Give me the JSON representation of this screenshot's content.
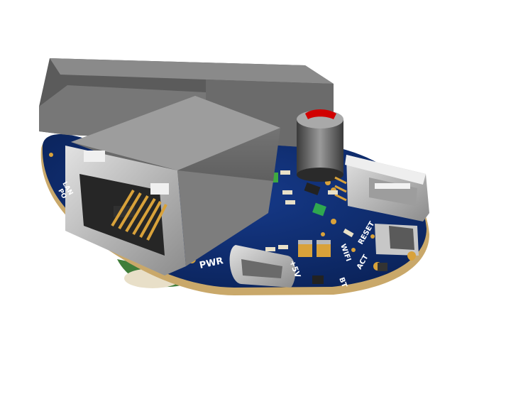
{
  "silkscreen": {
    "pwr": "PWR",
    "plus5v": "+5V",
    "act": "ACT",
    "reset": "RESET",
    "bt": "BT",
    "lan": "LAN",
    "wifi": "WIFI",
    "side": "PO"
  },
  "colors": {
    "board": "#0e2a6b",
    "board_edge": "#c9a86a",
    "copper": "#d9a23a",
    "metal": "#b8b8b8",
    "housing": "#6e6e6e",
    "capacitor_top": "#d10000"
  }
}
